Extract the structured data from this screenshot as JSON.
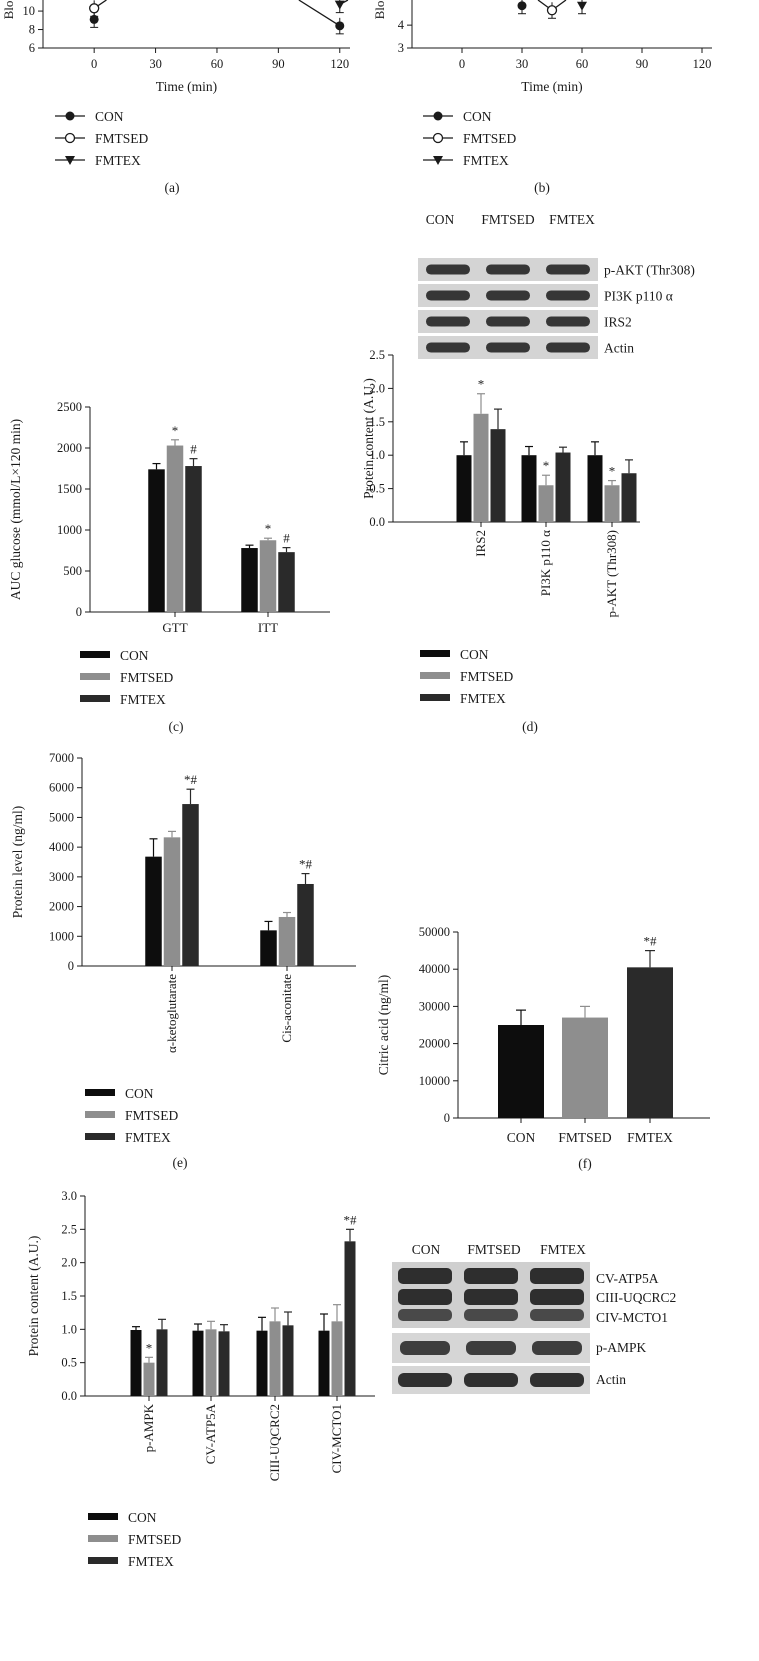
{
  "colors": {
    "con": "#0d0d0d",
    "fmtsed": "#8e8e8e",
    "fmtex": "#2a2a2a"
  },
  "groups": [
    "CON",
    "FMTSED",
    "FMTEX"
  ],
  "panels": {
    "a": "(a)",
    "b": "(b)",
    "c": "(c)",
    "d": "(d)",
    "e": "(e)",
    "f": "(f)"
  },
  "chart_data": [
    {
      "id": "a",
      "type": "line",
      "xlabel": "Time (min)",
      "ylabel": "Blo",
      "x_ticks": [
        0,
        30,
        60,
        90,
        120
      ],
      "y_ticks": [
        6,
        8,
        10
      ],
      "xlim": [
        -25,
        125
      ],
      "legend": [
        "CON",
        "FMTSED",
        "FMTEX"
      ],
      "legend_placement": "bottom-left",
      "series": [
        {
          "name": "CON",
          "marker": "filled-circle",
          "points": [
            [
              0,
              9.1
            ],
            [
              120,
              8.4
            ]
          ]
        },
        {
          "name": "FMTSED",
          "marker": "open-circle",
          "points": [
            [
              0,
              10.3
            ]
          ]
        },
        {
          "name": "FMTEX",
          "marker": "filled-triangle",
          "points": [
            [
              120,
              10.7
            ]
          ]
        }
      ]
    },
    {
      "id": "b",
      "type": "line",
      "xlabel": "Time (min)",
      "ylabel": "Blo",
      "x_ticks": [
        0,
        30,
        60,
        90,
        120
      ],
      "y_ticks": [
        3,
        4
      ],
      "xlim": [
        -25,
        125
      ],
      "legend": [
        "CON",
        "FMTSED",
        "FMTEX"
      ],
      "legend_placement": "bottom-left",
      "series": [
        {
          "name": "CON",
          "marker": "filled-circle",
          "points": [
            [
              30,
              4.85
            ]
          ]
        },
        {
          "name": "FMTSED",
          "marker": "open-circle",
          "points": [
            [
              45,
              4.65
            ]
          ]
        },
        {
          "name": "FMTEX",
          "marker": "filled-triangle",
          "points": [
            [
              60,
              4.85
            ]
          ]
        }
      ]
    },
    {
      "id": "c",
      "type": "bar",
      "ylabel": "AUC glucose (mmol/L×120 min)",
      "ylim": [
        0,
        2500
      ],
      "y_ticks": [
        0,
        500,
        1000,
        1500,
        2000,
        2500
      ],
      "categories": [
        "GTT",
        "ITT"
      ],
      "series": [
        {
          "name": "CON",
          "values": [
            1740,
            780
          ],
          "err": [
            70,
            35
          ]
        },
        {
          "name": "FMTSED",
          "values": [
            2030,
            875
          ],
          "err": [
            70,
            25
          ]
        },
        {
          "name": "FMTEX",
          "values": [
            1780,
            730
          ],
          "err": [
            90,
            55
          ]
        }
      ],
      "annotations": [
        [
          "",
          "*",
          "#"
        ],
        [
          "",
          "*",
          "#"
        ]
      ],
      "legend_placement": "bottom-left"
    },
    {
      "id": "d",
      "type": "bar",
      "ylabel": "Protein content (A.U.)",
      "ylim": [
        0,
        2.5
      ],
      "y_ticks": [
        "0.0",
        "0.5",
        "1.0",
        "1.5",
        "2.0",
        "2.5"
      ],
      "categories": [
        "IRS2",
        "PI3K p110 α",
        "p-AKT (Thr308)"
      ],
      "series": [
        {
          "name": "CON",
          "values": [
            1.0,
            1.0,
            1.0
          ],
          "err": [
            0.2,
            0.13,
            0.2
          ]
        },
        {
          "name": "FMTSED",
          "values": [
            1.62,
            0.55,
            0.55
          ],
          "err": [
            0.3,
            0.15,
            0.07
          ]
        },
        {
          "name": "FMTEX",
          "values": [
            1.39,
            1.04,
            0.73
          ],
          "err": [
            0.3,
            0.08,
            0.2
          ]
        }
      ],
      "annotations": [
        [
          "",
          "*",
          ""
        ],
        [
          "",
          "*",
          ""
        ],
        [
          "",
          "*",
          ""
        ]
      ],
      "legend_placement": "bottom-left"
    },
    {
      "id": "e",
      "type": "bar",
      "ylabel": "Protein level (ng/ml)",
      "ylim": [
        0,
        7000
      ],
      "y_ticks": [
        0,
        1000,
        2000,
        3000,
        4000,
        5000,
        6000,
        7000
      ],
      "categories": [
        "α-ketoglutarate",
        "Cis-aconitate"
      ],
      "series": [
        {
          "name": "CON",
          "values": [
            3680,
            1200
          ],
          "err": [
            600,
            300
          ]
        },
        {
          "name": "FMTSED",
          "values": [
            4330,
            1650
          ],
          "err": [
            200,
            150
          ]
        },
        {
          "name": "FMTEX",
          "values": [
            5450,
            2760
          ],
          "err": [
            500,
            350
          ]
        }
      ],
      "annotations": [
        [
          "",
          "",
          "*#"
        ],
        [
          "",
          "",
          "*#"
        ]
      ],
      "legend_placement": "bottom-left"
    },
    {
      "id": "f",
      "type": "bar",
      "ylabel": "Citric acid (ng/ml)",
      "ylim": [
        0,
        50000
      ],
      "y_ticks": [
        0,
        10000,
        20000,
        30000,
        40000,
        50000
      ],
      "categories": [
        "CON",
        "FMTSED",
        "FMTEX"
      ],
      "values": [
        25000,
        27000,
        40500
      ],
      "err": [
        4000,
        3000,
        4500
      ],
      "annotations": [
        "",
        "",
        "*#"
      ]
    },
    {
      "id": "g",
      "type": "bar",
      "ylabel": "Protein content (A.U.)",
      "ylim": [
        0,
        3.0
      ],
      "y_ticks": [
        "0.0",
        "0.5",
        "1.0",
        "1.5",
        "2.0",
        "2.5",
        "3.0"
      ],
      "categories": [
        "p-AMPK",
        "CV-ATP5A",
        "CIII-UQCRC2",
        "CIV-MCTO1"
      ],
      "series": [
        {
          "name": "CON",
          "values": [
            0.99,
            0.98,
            0.98,
            0.98
          ],
          "err": [
            0.05,
            0.1,
            0.2,
            0.25
          ]
        },
        {
          "name": "FMTSED",
          "values": [
            0.5,
            1.0,
            1.12,
            1.12
          ],
          "err": [
            0.08,
            0.12,
            0.2,
            0.25
          ]
        },
        {
          "name": "FMTEX",
          "values": [
            1.0,
            0.97,
            1.06,
            2.32
          ],
          "err": [
            0.15,
            0.1,
            0.2,
            0.18
          ]
        }
      ],
      "annotations": [
        [
          "",
          "*",
          ""
        ],
        [
          "",
          "",
          ""
        ],
        [
          "",
          "",
          ""
        ],
        [
          "",
          "",
          "*#"
        ]
      ],
      "legend_placement": "bottom-left"
    }
  ],
  "blots": {
    "top": {
      "columns": [
        "CON",
        "FMTSED",
        "FMTEX"
      ],
      "rows": [
        "p-AKT (Thr308)",
        "PI3K p110 α",
        "IRS2",
        "Actin"
      ]
    },
    "bottom": {
      "columns": [
        "CON",
        "FMTSED",
        "FMTEX"
      ],
      "rows": [
        "CV-ATP5A",
        "CIII-UQCRC2",
        "CIV-MCTO1",
        "p-AMPK",
        "Actin"
      ]
    }
  }
}
